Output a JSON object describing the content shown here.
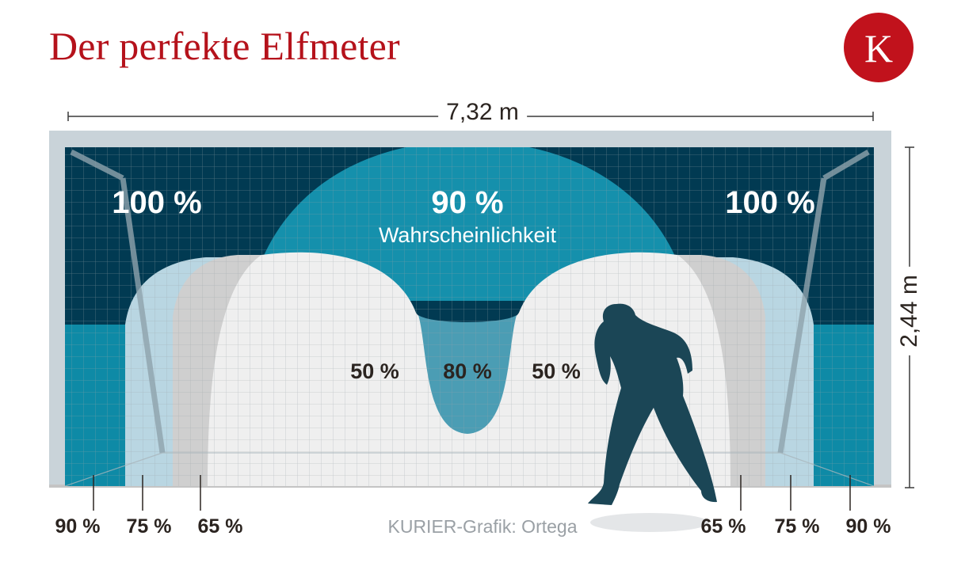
{
  "title": "Der perfekte Elfmeter",
  "logo_letter": "K",
  "dimensions": {
    "width": "7,32 m",
    "height": "2,44 m"
  },
  "zones_top": [
    {
      "value": "100 %"
    },
    {
      "value": "90 %",
      "caption": "Wahrscheinlichkeit"
    },
    {
      "value": "100 %"
    }
  ],
  "zones_middle": [
    "50 %",
    "80 %",
    "50 %"
  ],
  "zones_bottom_left": [
    "90 %",
    "75 %",
    "65 %"
  ],
  "zones_bottom_right": [
    "65 %",
    "75 %",
    "90 %"
  ],
  "credit": "KURIER-Grafik: Ortega",
  "colors": {
    "title_red": "#b5121b",
    "zone_100": "#013a52",
    "zone_90": "#0e8aa6",
    "zone_80": "#4b9db4",
    "zone_75": "#b9d6e2",
    "zone_65": "#cfcfcf",
    "zone_50": "#efefef",
    "goal_frame": "#c9d3d9",
    "keeper": "#1b4656"
  }
}
